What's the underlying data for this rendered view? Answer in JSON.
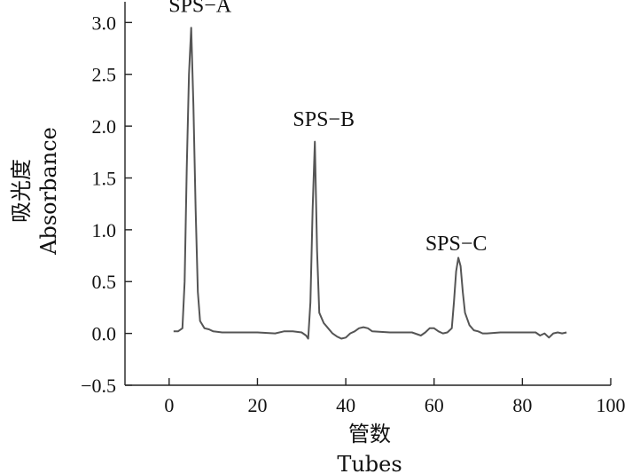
{
  "chart_data": {
    "type": "line",
    "xlabel_zh": "管数",
    "xlabel_en": "Tubes",
    "ylabel_zh": "吸光度",
    "ylabel_en": "Absorbance",
    "xlim": [
      -10,
      100
    ],
    "ylim": [
      -0.5,
      3.2
    ],
    "x_ticks": [
      0,
      20,
      40,
      60,
      80,
      100
    ],
    "y_ticks": [
      -0.5,
      0.0,
      0.5,
      1.0,
      1.5,
      2.0,
      2.5,
      3.0
    ],
    "y_tick_labels": [
      "−0.5",
      "0.0",
      "0.5",
      "1.0",
      "1.5",
      "2.0",
      "2.5",
      "3.0"
    ],
    "grid": false,
    "annotations": [
      {
        "text": "SPS−A",
        "x": 7,
        "y": 3.1
      },
      {
        "text": "SPS−B",
        "x": 35,
        "y": 2.0
      },
      {
        "text": "SPS−C",
        "x": 65,
        "y": 0.8
      }
    ],
    "series": [
      {
        "x": [
          1,
          2,
          3,
          3.5,
          4,
          4.5,
          5,
          5.5,
          6,
          6.5,
          7,
          8,
          9,
          10,
          12,
          15,
          20,
          24,
          26,
          28,
          30,
          31,
          31.5,
          32,
          32.5,
          33,
          33.5,
          34,
          35,
          36,
          37,
          38,
          39,
          40,
          41,
          42,
          43,
          44,
          45,
          46,
          50,
          55,
          57,
          58,
          59,
          60,
          61,
          62,
          63,
          64,
          64.5,
          65,
          65.5,
          66,
          66.5,
          67,
          68,
          69,
          70,
          71,
          72,
          75,
          80,
          83,
          84,
          85,
          86,
          87,
          88,
          89,
          90
        ],
        "y": [
          0.02,
          0.02,
          0.05,
          0.5,
          1.6,
          2.5,
          2.95,
          2.2,
          1.2,
          0.4,
          0.12,
          0.05,
          0.04,
          0.02,
          0.01,
          0.01,
          0.01,
          0.0,
          0.02,
          0.02,
          0.01,
          -0.02,
          -0.05,
          0.3,
          1.2,
          1.85,
          0.8,
          0.2,
          0.1,
          0.05,
          0.0,
          -0.03,
          -0.05,
          -0.04,
          0.0,
          0.02,
          0.05,
          0.06,
          0.05,
          0.02,
          0.01,
          0.01,
          -0.02,
          0.01,
          0.05,
          0.05,
          0.02,
          0.0,
          0.01,
          0.05,
          0.3,
          0.6,
          0.73,
          0.65,
          0.4,
          0.2,
          0.08,
          0.03,
          0.02,
          0.0,
          0.0,
          0.01,
          0.01,
          0.01,
          -0.02,
          0.0,
          -0.04,
          0.0,
          0.01,
          0.0,
          0.01
        ]
      }
    ]
  }
}
